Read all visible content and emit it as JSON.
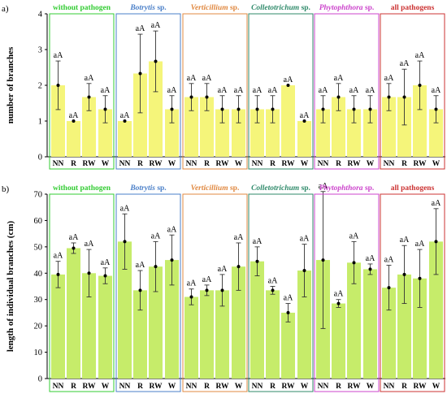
{
  "chart_data": [
    {
      "type": "bar",
      "panel_label": "a)",
      "ylabel": "number of branches",
      "ylim": [
        0,
        4
      ],
      "yticks": [
        0,
        1,
        2,
        3,
        4
      ],
      "grid": false,
      "colors": {
        "bar": "#f5f57a",
        "frame": "#000000",
        "error": "#333333"
      },
      "groups": [
        {
          "title": "without pathogen",
          "color": "#33cc33",
          "italic_part": "",
          "rest": "without pathogen",
          "categories": [
            "NN",
            "R",
            "RW",
            "W"
          ],
          "values": [
            2.0,
            1.0,
            1.67,
            1.33
          ],
          "errors": [
            0.68,
            0.0,
            0.38,
            0.38
          ],
          "labels": [
            "aA",
            "aA",
            "aA",
            "aA"
          ]
        },
        {
          "title": "Botrytis sp.",
          "color": "#4a7fc8",
          "italic_part": "Botrytis",
          "rest": " sp.",
          "categories": [
            "NN",
            "R",
            "RW",
            "W"
          ],
          "values": [
            1.0,
            2.33,
            2.67,
            1.33
          ],
          "errors": [
            0.0,
            1.1,
            0.85,
            0.38
          ],
          "labels": [
            "aA",
            "aA",
            "aA",
            "aA"
          ]
        },
        {
          "title": "Verticillium sp.",
          "color": "#e08840",
          "italic_part": "Verticillium",
          "rest": " sp.",
          "categories": [
            "NN",
            "R",
            "RW",
            "W"
          ],
          "values": [
            1.67,
            1.67,
            1.33,
            1.33
          ],
          "errors": [
            0.38,
            0.38,
            0.38,
            0.38
          ],
          "labels": [
            "aA",
            "aA",
            "aA",
            "aA"
          ]
        },
        {
          "title": "Colletotrichum sp.",
          "color": "#2f8a6a",
          "italic_part": "Colletotrichum",
          "rest": " sp.",
          "categories": [
            "NN",
            "R",
            "RW",
            "W"
          ],
          "values": [
            1.33,
            1.33,
            2.0,
            1.0
          ],
          "errors": [
            0.38,
            0.38,
            0.0,
            0.0
          ],
          "labels": [
            "aA",
            "aA",
            "aA",
            "aA"
          ]
        },
        {
          "title": "Phytophthora sp.",
          "color": "#cc44cc",
          "italic_part": "Phytophthora",
          "rest": " sp.",
          "categories": [
            "NN",
            "R",
            "RW",
            "W"
          ],
          "values": [
            1.33,
            1.67,
            1.33,
            1.33
          ],
          "errors": [
            0.38,
            0.38,
            0.38,
            0.38
          ],
          "labels": [
            "aA",
            "aA",
            "aA",
            "aA"
          ]
        },
        {
          "title": "all pathogens",
          "color": "#cc3333",
          "italic_part": "",
          "rest": "all pathogens",
          "categories": [
            "NN",
            "R",
            "RW",
            "W"
          ],
          "values": [
            1.67,
            1.67,
            2.0,
            1.33
          ],
          "errors": [
            0.38,
            0.78,
            0.68,
            0.38
          ],
          "labels": [
            "aA",
            "aA",
            "aA",
            "aA"
          ]
        }
      ]
    },
    {
      "type": "bar",
      "panel_label": "b)",
      "ylabel": "length of individual branches (cm)",
      "ylim": [
        0,
        70
      ],
      "yticks": [
        0,
        10,
        20,
        30,
        40,
        50,
        60,
        70
      ],
      "grid": false,
      "colors": {
        "bar": "#c6ec6a",
        "frame": "#000000",
        "error": "#333333"
      },
      "groups": [
        {
          "title": "without pathogen",
          "color": "#33cc33",
          "italic_part": "",
          "rest": "without pathogen",
          "categories": [
            "NN",
            "R",
            "RW",
            "W"
          ],
          "values": [
            39.5,
            49.5,
            40.0,
            39.0
          ],
          "errors": [
            5.0,
            2.0,
            9.0,
            3.0
          ],
          "labels": [
            "aA",
            "aA",
            "aA",
            "aA"
          ]
        },
        {
          "title": "Botrytis sp.",
          "color": "#4a7fc8",
          "italic_part": "Botrytis",
          "rest": " sp.",
          "categories": [
            "NN",
            "R",
            "RW",
            "W"
          ],
          "values": [
            52.0,
            33.5,
            42.5,
            45.0
          ],
          "errors": [
            10.5,
            7.5,
            9.5,
            9.5
          ],
          "labels": [
            "aA",
            "aA",
            "aA",
            "aA"
          ]
        },
        {
          "title": "Verticillium sp.",
          "color": "#e08840",
          "italic_part": "Verticillium",
          "rest": " sp.",
          "categories": [
            "NN",
            "R",
            "RW",
            "W"
          ],
          "values": [
            31.0,
            33.5,
            33.5,
            42.5
          ],
          "errors": [
            3.0,
            2.0,
            6.0,
            9.0
          ],
          "labels": [
            "aA",
            "aA",
            "aA",
            "aA"
          ]
        },
        {
          "title": "Colletotrichum sp.",
          "color": "#2f8a6a",
          "italic_part": "Colletotrichum",
          "rest": " sp.",
          "categories": [
            "NN",
            "R",
            "RW",
            "W"
          ],
          "values": [
            44.5,
            33.5,
            25.0,
            41.0
          ],
          "errors": [
            5.5,
            1.5,
            3.5,
            10.0
          ],
          "labels": [
            "aA",
            "aA",
            "aA",
            "aA"
          ]
        },
        {
          "title": "Phytophthora sp.",
          "color": "#cc44cc",
          "italic_part": "Phytophthora",
          "rest": " sp.",
          "categories": [
            "NN",
            "R",
            "RW",
            "W"
          ],
          "values": [
            45.0,
            28.5,
            44.0,
            41.5
          ],
          "errors": [
            26.0,
            1.5,
            8.0,
            2.0
          ],
          "labels": [
            "aA",
            "aA",
            "aA",
            "aA"
          ]
        },
        {
          "title": "all pathogens",
          "color": "#cc3333",
          "italic_part": "",
          "rest": "all pathogens",
          "categories": [
            "NN",
            "R",
            "RW",
            "W"
          ],
          "values": [
            34.5,
            39.5,
            38.0,
            52.0
          ],
          "errors": [
            8.5,
            11.0,
            11.0,
            12.5
          ],
          "labels": [
            "aA",
            "aA",
            "aA",
            "aA"
          ]
        }
      ]
    }
  ]
}
